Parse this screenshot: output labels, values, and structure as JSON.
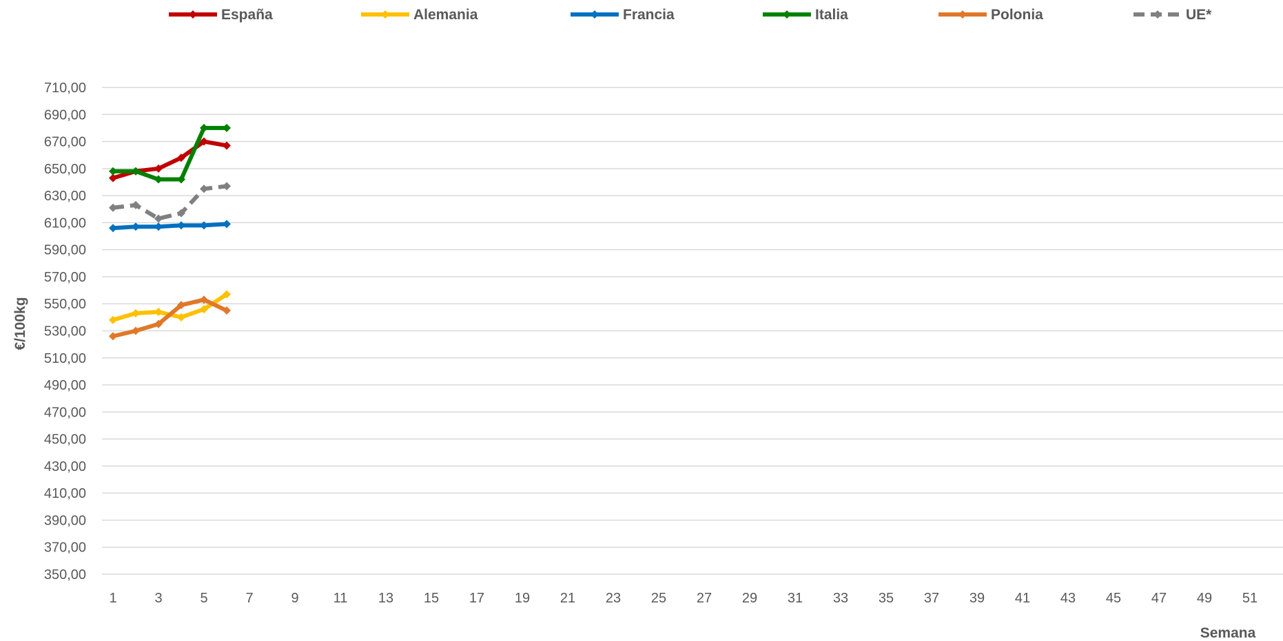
{
  "chart_data": {
    "type": "line",
    "title": "",
    "xlabel": "Semana",
    "ylabel": "€/100kg",
    "ylim": [
      350,
      710
    ],
    "y_step": 20,
    "y_ticks": [
      "350,00",
      "370,00",
      "390,00",
      "410,00",
      "430,00",
      "450,00",
      "470,00",
      "490,00",
      "510,00",
      "530,00",
      "550,00",
      "570,00",
      "590,00",
      "610,00",
      "630,00",
      "650,00",
      "670,00",
      "690,00",
      "710,00"
    ],
    "xlim": [
      1,
      52
    ],
    "x_ticks": [
      "1",
      "3",
      "5",
      "7",
      "9",
      "11",
      "13",
      "15",
      "17",
      "19",
      "21",
      "23",
      "25",
      "27",
      "29",
      "31",
      "33",
      "35",
      "37",
      "39",
      "41",
      "43",
      "45",
      "47",
      "49",
      "51"
    ],
    "grid": true,
    "legend_position": "top",
    "x": [
      1,
      2,
      3,
      4,
      5,
      6
    ],
    "series": [
      {
        "name": "España",
        "color": "#C00000",
        "dash": false,
        "values": [
          643,
          648,
          650,
          658,
          670,
          667
        ]
      },
      {
        "name": "Alemania",
        "color": "#FFC000",
        "dash": false,
        "values": [
          538,
          543,
          544,
          540,
          546,
          557
        ]
      },
      {
        "name": "Francia",
        "color": "#0070C0",
        "dash": false,
        "values": [
          606,
          607,
          607,
          608,
          608,
          609
        ]
      },
      {
        "name": "Italia",
        "color": "#008000",
        "dash": false,
        "values": [
          648,
          648,
          642,
          642,
          680,
          680
        ]
      },
      {
        "name": "Polonia",
        "color": "#E0782A",
        "dash": false,
        "values": [
          526,
          530,
          535,
          549,
          553,
          545
        ]
      },
      {
        "name": "UE*",
        "color": "#808080",
        "dash": true,
        "values": [
          621,
          623,
          613,
          617,
          635,
          637
        ]
      }
    ]
  }
}
